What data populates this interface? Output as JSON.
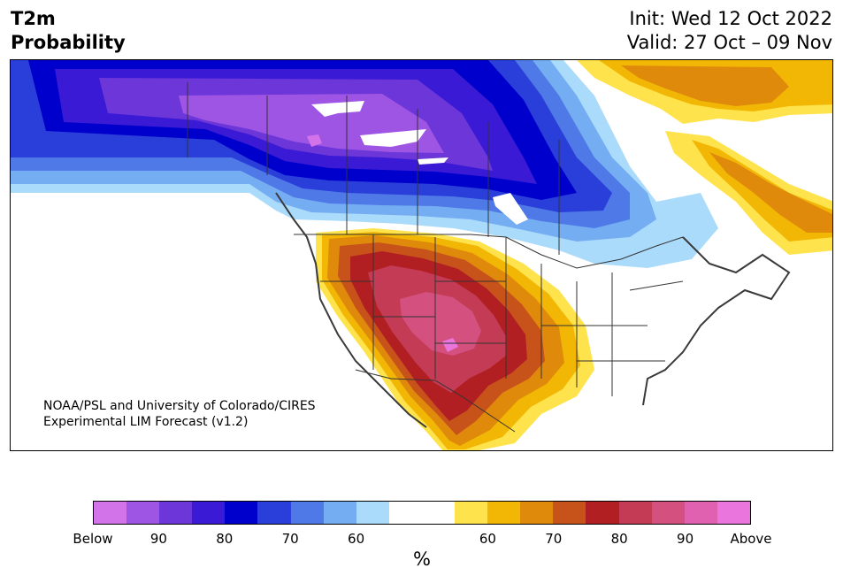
{
  "header": {
    "title_line1": "T2m",
    "title_line2": "Probability",
    "init": "Init: Wed 12 Oct 2022",
    "valid": "Valid: 27 Oct – 09 Nov"
  },
  "credit": {
    "line1": "NOAA/PSL and University of Colorado/CIRES",
    "line2": "Experimental LIM Forecast (v1.2)"
  },
  "colorbar": {
    "colors": [
      "#d373ea",
      "#9f55e4",
      "#6c36d9",
      "#3a1ad5",
      "#0000cc",
      "#2a3ed9",
      "#4f79e6",
      "#74adf2",
      "#abdbfb",
      "#ffffff",
      "#ffffff",
      "#fee34c",
      "#f2b705",
      "#e08a0c",
      "#c8531a",
      "#b21f22",
      "#c43b55",
      "#d3507f",
      "#df61b0",
      "#ea75dc"
    ],
    "labels": [
      "Below",
      "90",
      "80",
      "70",
      "60",
      "60",
      "70",
      "80",
      "90",
      "Above"
    ],
    "unit": "%"
  },
  "map": {
    "below_colors": [
      "#abdbfb",
      "#74adf2",
      "#4f79e6",
      "#2a3ed9",
      "#0000cc",
      "#3a1ad5",
      "#6c36d9",
      "#9f55e4",
      "#d373ea"
    ],
    "above_colors": [
      "#fee34c",
      "#f2b705",
      "#e08a0c",
      "#c8531a",
      "#b21f22",
      "#c43b55",
      "#d3507f",
      "#ea75dc"
    ]
  }
}
